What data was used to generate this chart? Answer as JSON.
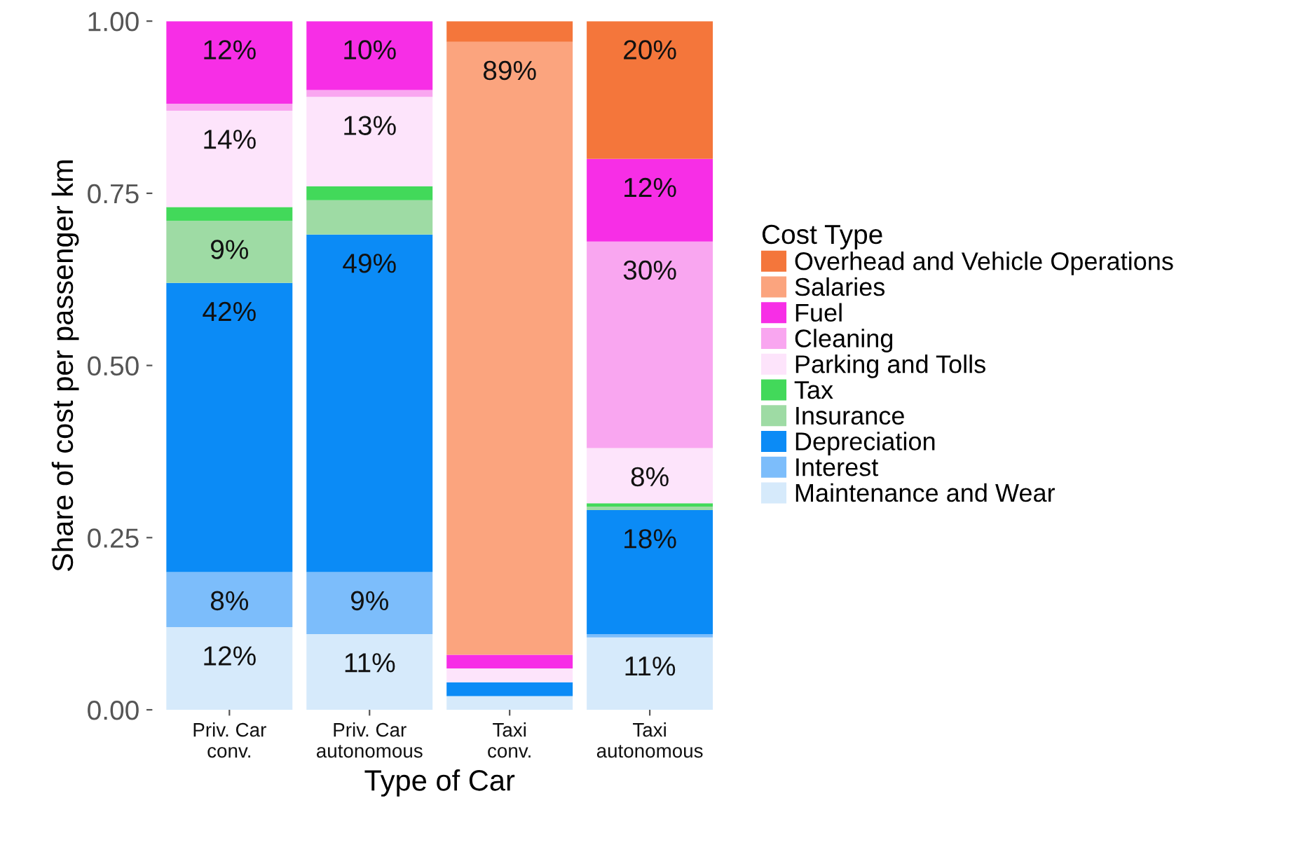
{
  "chart_data": {
    "type": "bar",
    "stacked": true,
    "xlabel": "Type of Car",
    "ylabel": "Share of cost per passenger km",
    "legend_title": "Cost Type",
    "legend": "right",
    "grid": false,
    "categories": [
      "Priv. Car\nconv.",
      "Priv. Car\nautonomous",
      "Taxi\nconv.",
      "Taxi\nautonomous"
    ],
    "ylim": [
      0,
      1
    ],
    "yticks": [
      {
        "value": 0,
        "label": "0.00"
      },
      {
        "value": 0.25,
        "label": "0.25"
      },
      {
        "value": 0.5,
        "label": "0.50"
      },
      {
        "value": 0.75,
        "label": "0.75"
      },
      {
        "value": 1,
        "label": "1.00"
      }
    ],
    "series": [
      {
        "name": "Maintenance and Wear",
        "color": "#d6eafb",
        "values": [
          0.12,
          0.11,
          0.02,
          0.105
        ],
        "value_labels": [
          "12%",
          "11%",
          null,
          "11%"
        ]
      },
      {
        "name": "Interest",
        "color": "#7cbdfb",
        "values": [
          0.08,
          0.09,
          0.0,
          0.005
        ],
        "value_labels": [
          "8%",
          "9%",
          null,
          null
        ]
      },
      {
        "name": "Depreciation",
        "color": "#0b8bf6",
        "values": [
          0.42,
          0.49,
          0.02,
          0.18
        ],
        "value_labels": [
          "42%",
          "49%",
          null,
          "18%"
        ]
      },
      {
        "name": "Insurance",
        "color": "#9edba4",
        "values": [
          0.09,
          0.05,
          0.0,
          0.005
        ],
        "value_labels": [
          "9%",
          null,
          null,
          null
        ]
      },
      {
        "name": "Tax",
        "color": "#42d95a",
        "values": [
          0.02,
          0.02,
          0.0,
          0.005
        ],
        "value_labels": [
          null,
          null,
          null,
          null
        ]
      },
      {
        "name": "Parking and Tolls",
        "color": "#fde4fb",
        "values": [
          0.14,
          0.13,
          0.02,
          0.08
        ],
        "value_labels": [
          "14%",
          "13%",
          null,
          "8%"
        ]
      },
      {
        "name": "Cleaning",
        "color": "#f9a6f0",
        "values": [
          0.01,
          0.01,
          0.0,
          0.3
        ],
        "value_labels": [
          null,
          null,
          null,
          "30%"
        ]
      },
      {
        "name": "Fuel",
        "color": "#f72ee6",
        "values": [
          0.12,
          0.1,
          0.02,
          0.12
        ],
        "value_labels": [
          "12%",
          "10%",
          null,
          "12%"
        ]
      },
      {
        "name": "Salaries",
        "color": "#fba47e",
        "values": [
          0.0,
          0.0,
          0.89,
          0.0
        ],
        "value_labels": [
          null,
          null,
          "89%",
          null
        ]
      },
      {
        "name": "Overhead and Vehicle Operations",
        "color": "#f4763b",
        "values": [
          0.0,
          0.0,
          0.03,
          0.2
        ],
        "value_labels": [
          null,
          null,
          null,
          "20%"
        ]
      }
    ]
  }
}
